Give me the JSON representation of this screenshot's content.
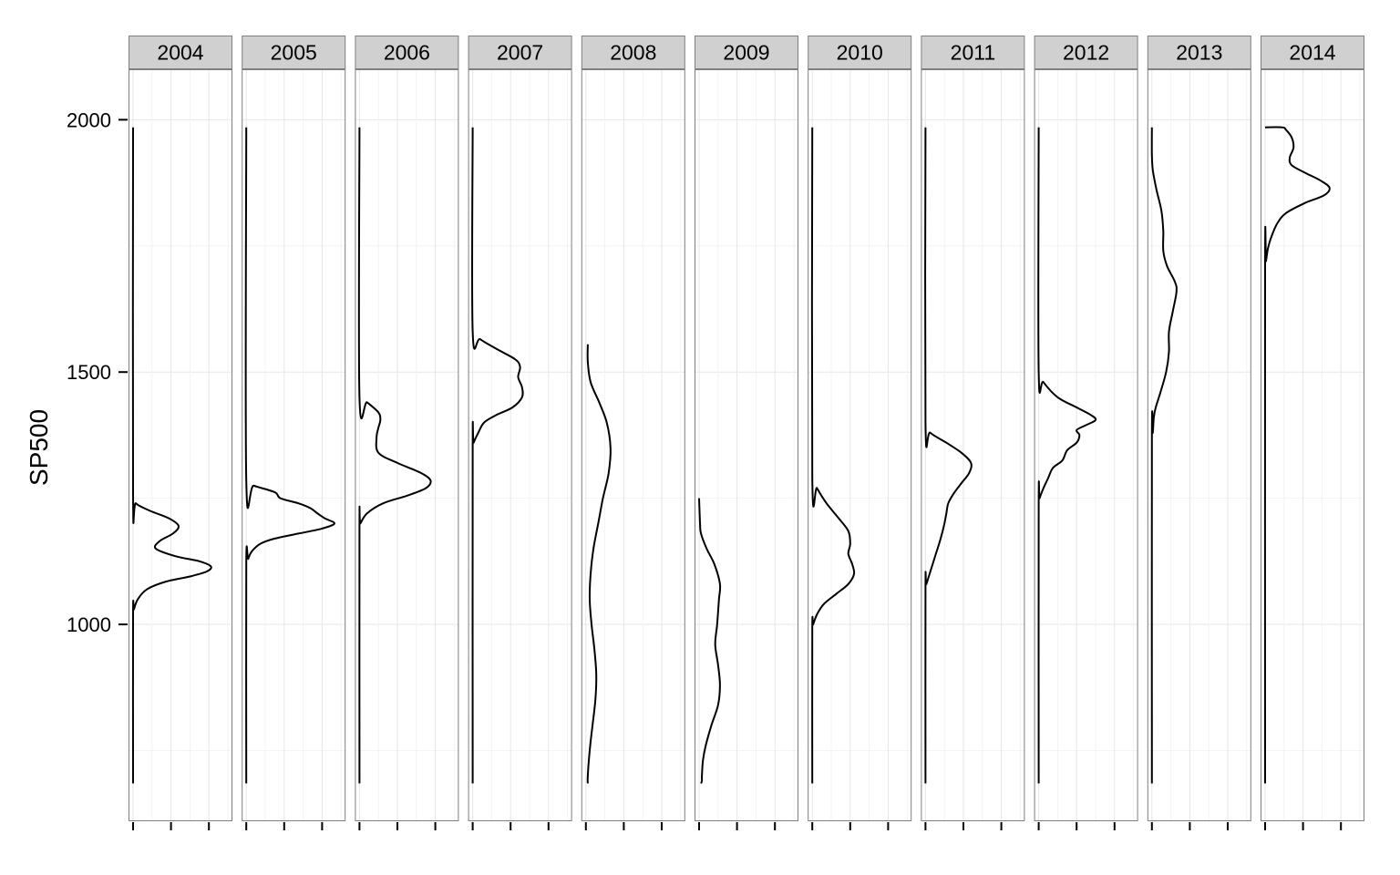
{
  "chart_data": {
    "type": "density-ridge-facets",
    "title": "",
    "xlabel": "",
    "ylabel": "SP500",
    "ylim": [
      610,
      2100
    ],
    "yticks": [
      1000,
      1500,
      2000
    ],
    "grid": true,
    "colors": {
      "line": "#000000",
      "panel_border": "#7f7f7f",
      "strip_fill": "#d0d0d0",
      "grid_major": "#e6e6e6",
      "grid_minor": "#f3f3f3",
      "background": "#ffffff"
    },
    "facets": [
      {
        "label": "2004",
        "range": [
          1985,
          685
        ],
        "density": [
          [
            1985,
            0
          ],
          [
            1260,
            0
          ],
          [
            1240,
            0.03
          ],
          [
            1225,
            0.18
          ],
          [
            1210,
            0.38
          ],
          [
            1195,
            0.48
          ],
          [
            1180,
            0.42
          ],
          [
            1165,
            0.28
          ],
          [
            1150,
            0.24
          ],
          [
            1135,
            0.45
          ],
          [
            1125,
            0.7
          ],
          [
            1115,
            0.82
          ],
          [
            1105,
            0.78
          ],
          [
            1095,
            0.6
          ],
          [
            1085,
            0.35
          ],
          [
            1070,
            0.15
          ],
          [
            1050,
            0.05
          ],
          [
            1030,
            0.01
          ],
          [
            1020,
            0
          ],
          [
            685,
            0
          ]
        ]
      },
      {
        "label": "2005",
        "range": [
          1985,
          685
        ],
        "density": [
          [
            1985,
            0
          ],
          [
            1285,
            0
          ],
          [
            1275,
            0.08
          ],
          [
            1262,
            0.3
          ],
          [
            1250,
            0.36
          ],
          [
            1240,
            0.55
          ],
          [
            1230,
            0.68
          ],
          [
            1220,
            0.75
          ],
          [
            1210,
            0.83
          ],
          [
            1200,
            0.93
          ],
          [
            1190,
            0.8
          ],
          [
            1180,
            0.55
          ],
          [
            1170,
            0.3
          ],
          [
            1160,
            0.15
          ],
          [
            1145,
            0.06
          ],
          [
            1130,
            0.02
          ],
          [
            1120,
            0
          ],
          [
            685,
            0
          ]
        ]
      },
      {
        "label": "2006",
        "range": [
          1985,
          685
        ],
        "density": [
          [
            1985,
            0
          ],
          [
            1450,
            0
          ],
          [
            1440,
            0.08
          ],
          [
            1420,
            0.2
          ],
          [
            1405,
            0.22
          ],
          [
            1390,
            0.2
          ],
          [
            1370,
            0.18
          ],
          [
            1340,
            0.2
          ],
          [
            1320,
            0.4
          ],
          [
            1300,
            0.65
          ],
          [
            1285,
            0.75
          ],
          [
            1270,
            0.7
          ],
          [
            1255,
            0.5
          ],
          [
            1240,
            0.25
          ],
          [
            1220,
            0.08
          ],
          [
            1200,
            0.01
          ],
          [
            1195,
            0
          ],
          [
            685,
            0
          ]
        ]
      },
      {
        "label": "2007",
        "range": [
          1985,
          685
        ],
        "density": [
          [
            1985,
            0
          ],
          [
            1580,
            0
          ],
          [
            1565,
            0.08
          ],
          [
            1545,
            0.26
          ],
          [
            1525,
            0.45
          ],
          [
            1510,
            0.5
          ],
          [
            1490,
            0.48
          ],
          [
            1470,
            0.52
          ],
          [
            1450,
            0.52
          ],
          [
            1430,
            0.42
          ],
          [
            1415,
            0.25
          ],
          [
            1400,
            0.12
          ],
          [
            1380,
            0.06
          ],
          [
            1360,
            0.01
          ],
          [
            1350,
            0
          ],
          [
            685,
            0
          ]
        ]
      },
      {
        "label": "2008",
        "range": [
          1555,
          685
        ],
        "density": [
          [
            1555,
            0.02
          ],
          [
            1520,
            0.02
          ],
          [
            1480,
            0.05
          ],
          [
            1440,
            0.14
          ],
          [
            1400,
            0.22
          ],
          [
            1350,
            0.26
          ],
          [
            1300,
            0.24
          ],
          [
            1250,
            0.18
          ],
          [
            1200,
            0.13
          ],
          [
            1150,
            0.08
          ],
          [
            1100,
            0.05
          ],
          [
            1050,
            0.04
          ],
          [
            1000,
            0.06
          ],
          [
            950,
            0.09
          ],
          [
            900,
            0.11
          ],
          [
            850,
            0.1
          ],
          [
            800,
            0.07
          ],
          [
            750,
            0.04
          ],
          [
            700,
            0.02
          ],
          [
            685,
            0.02
          ]
        ]
      },
      {
        "label": "2009",
        "range": [
          1250,
          685
        ],
        "density": [
          [
            1250,
            0
          ],
          [
            1200,
            0.01
          ],
          [
            1180,
            0.02
          ],
          [
            1150,
            0.08
          ],
          [
            1120,
            0.16
          ],
          [
            1080,
            0.22
          ],
          [
            1050,
            0.21
          ],
          [
            1000,
            0.19
          ],
          [
            960,
            0.17
          ],
          [
            920,
            0.2
          ],
          [
            880,
            0.22
          ],
          [
            840,
            0.2
          ],
          [
            800,
            0.13
          ],
          [
            760,
            0.07
          ],
          [
            730,
            0.04
          ],
          [
            700,
            0.03
          ],
          [
            690,
            0.03
          ],
          [
            685,
            0.02
          ]
        ]
      },
      {
        "label": "2010",
        "range": [
          1985,
          685
        ],
        "density": [
          [
            1985,
            0
          ],
          [
            1290,
            0
          ],
          [
            1270,
            0.05
          ],
          [
            1240,
            0.15
          ],
          [
            1210,
            0.28
          ],
          [
            1185,
            0.38
          ],
          [
            1160,
            0.4
          ],
          [
            1140,
            0.38
          ],
          [
            1120,
            0.42
          ],
          [
            1100,
            0.44
          ],
          [
            1080,
            0.38
          ],
          [
            1060,
            0.25
          ],
          [
            1040,
            0.12
          ],
          [
            1020,
            0.05
          ],
          [
            1000,
            0.01
          ],
          [
            990,
            0
          ],
          [
            685,
            0
          ]
        ]
      },
      {
        "label": "2011",
        "range": [
          1985,
          685
        ],
        "density": [
          [
            1985,
            0
          ],
          [
            1400,
            0
          ],
          [
            1380,
            0.05
          ],
          [
            1360,
            0.22
          ],
          [
            1340,
            0.38
          ],
          [
            1320,
            0.48
          ],
          [
            1300,
            0.46
          ],
          [
            1280,
            0.38
          ],
          [
            1260,
            0.3
          ],
          [
            1240,
            0.24
          ],
          [
            1220,
            0.22
          ],
          [
            1200,
            0.2
          ],
          [
            1170,
            0.16
          ],
          [
            1140,
            0.11
          ],
          [
            1110,
            0.06
          ],
          [
            1080,
            0.01
          ],
          [
            1075,
            0
          ],
          [
            685,
            0
          ]
        ]
      },
      {
        "label": "2012",
        "range": [
          1985,
          685
        ],
        "density": [
          [
            1985,
            0
          ],
          [
            1500,
            0
          ],
          [
            1480,
            0.05
          ],
          [
            1450,
            0.2
          ],
          [
            1430,
            0.4
          ],
          [
            1415,
            0.55
          ],
          [
            1405,
            0.6
          ],
          [
            1395,
            0.5
          ],
          [
            1385,
            0.4
          ],
          [
            1375,
            0.43
          ],
          [
            1360,
            0.4
          ],
          [
            1345,
            0.3
          ],
          [
            1325,
            0.25
          ],
          [
            1310,
            0.15
          ],
          [
            1290,
            0.1
          ],
          [
            1270,
            0.05
          ],
          [
            1250,
            0.01
          ],
          [
            1240,
            0
          ],
          [
            685,
            0
          ]
        ]
      },
      {
        "label": "2013",
        "range": [
          1985,
          685
        ],
        "density": [
          [
            1985,
            0
          ],
          [
            1930,
            0
          ],
          [
            1900,
            0.01
          ],
          [
            1860,
            0.05
          ],
          [
            1820,
            0.1
          ],
          [
            1780,
            0.12
          ],
          [
            1740,
            0.12
          ],
          [
            1710,
            0.16
          ],
          [
            1680,
            0.24
          ],
          [
            1660,
            0.26
          ],
          [
            1620,
            0.22
          ],
          [
            1580,
            0.18
          ],
          [
            1540,
            0.18
          ],
          [
            1500,
            0.15
          ],
          [
            1460,
            0.09
          ],
          [
            1430,
            0.04
          ],
          [
            1410,
            0.02
          ],
          [
            1380,
            0.01
          ],
          [
            1370,
            0
          ],
          [
            685,
            0
          ]
        ]
      },
      {
        "label": "2014",
        "range": [
          1985,
          685
        ],
        "density": [
          [
            1985,
            0
          ],
          [
            1985,
            0.18
          ],
          [
            1980,
            0.22
          ],
          [
            1965,
            0.28
          ],
          [
            1945,
            0.3
          ],
          [
            1925,
            0.26
          ],
          [
            1910,
            0.28
          ],
          [
            1895,
            0.42
          ],
          [
            1880,
            0.58
          ],
          [
            1865,
            0.68
          ],
          [
            1850,
            0.62
          ],
          [
            1835,
            0.42
          ],
          [
            1815,
            0.22
          ],
          [
            1795,
            0.13
          ],
          [
            1770,
            0.07
          ],
          [
            1745,
            0.03
          ],
          [
            1720,
            0.01
          ],
          [
            1710,
            0
          ],
          [
            685,
            0
          ]
        ]
      }
    ]
  }
}
